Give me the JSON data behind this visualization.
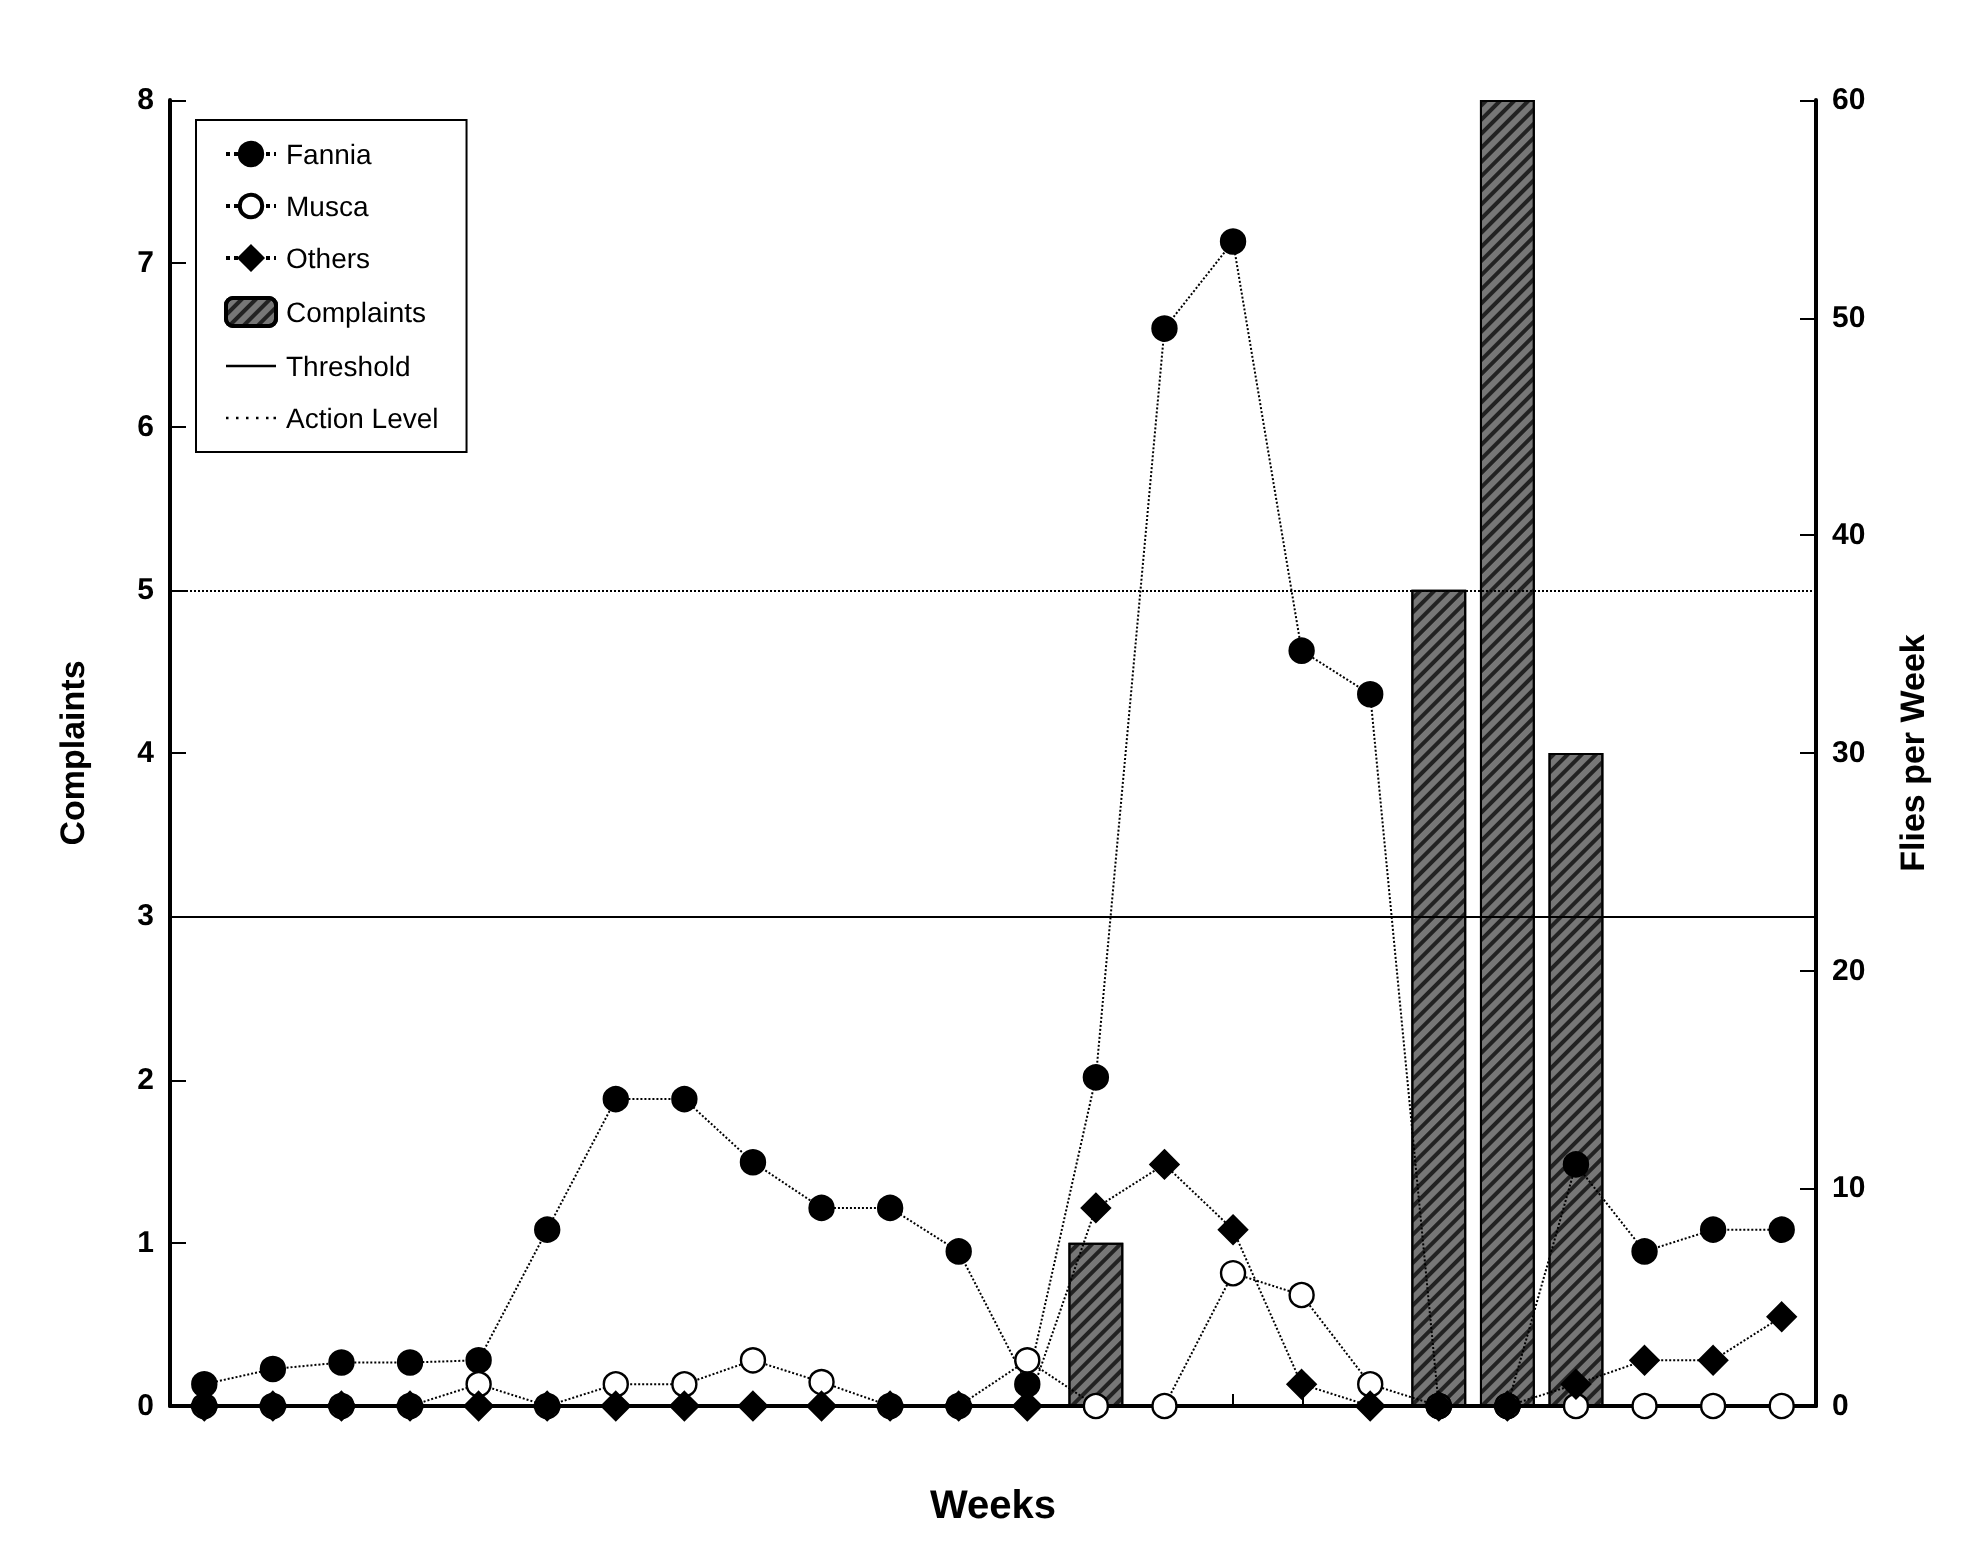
{
  "chart_data": {
    "type": "line",
    "xlabel": "Weeks",
    "ylabel": "Complaints",
    "y2label": "Flies per Week",
    "categories": [
      null,
      null,
      null,
      null,
      null,
      null,
      null,
      null,
      null,
      null,
      null,
      null,
      null,
      null,
      null,
      null,
      null,
      null,
      null,
      null,
      null,
      null,
      null,
      null
    ],
    "series": [
      {
        "name": "Fannia",
        "axis": "y2",
        "marker": "circle",
        "color": "#000000",
        "values": [
          1.0,
          1.7,
          2.0,
          2.0,
          2.1,
          8.1,
          14.1,
          14.1,
          11.2,
          9.1,
          9.1,
          7.1,
          1.0,
          15.1,
          49.5,
          53.5,
          34.7,
          32.7,
          0,
          0,
          11.1,
          7.1,
          8.1,
          8.1
        ]
      },
      {
        "name": "Musca",
        "axis": "y2",
        "marker": "circle",
        "color": "#ffffff",
        "values": [
          0,
          0,
          0,
          0,
          1.0,
          0,
          1.0,
          1.0,
          2.1,
          1.1,
          0,
          0,
          2.1,
          0,
          0,
          6.1,
          5.1,
          1.0,
          0,
          0,
          0,
          0,
          0,
          0
        ]
      },
      {
        "name": "Others",
        "axis": "y2",
        "marker": "diamond",
        "color": "#000000",
        "values": [
          0,
          0,
          0,
          0,
          0,
          0,
          0,
          0,
          0,
          0,
          0,
          0,
          0,
          9.1,
          11.1,
          8.1,
          1.0,
          0,
          0,
          0,
          1.0,
          2.1,
          2.1,
          4.1
        ]
      },
      {
        "name": "Complaints",
        "type": "bar",
        "axis": "y",
        "color": "#777777",
        "values": [
          0,
          0,
          0,
          0,
          0,
          0,
          0,
          0,
          0,
          0,
          0,
          0,
          0,
          1,
          0,
          0,
          0,
          0,
          5,
          8,
          4,
          0,
          0,
          0
        ]
      }
    ],
    "ylim": [
      0,
      8
    ],
    "yticks": [
      0,
      1,
      2,
      3,
      4,
      5,
      6,
      7,
      8
    ],
    "y2lim": [
      0,
      60
    ],
    "y2ticks": [
      0,
      10,
      20,
      30,
      40,
      50,
      60
    ],
    "ref_lines": [
      {
        "axis": "y",
        "value": 3,
        "label": "Threshold",
        "line_style": "solid",
        "color": "#000000"
      },
      {
        "axis": "y",
        "value": 5,
        "label": "Action Level",
        "line_style": "dotted",
        "color": "#000000"
      }
    ],
    "line_style": "dotted",
    "legend": "top left",
    "grid": false
  }
}
